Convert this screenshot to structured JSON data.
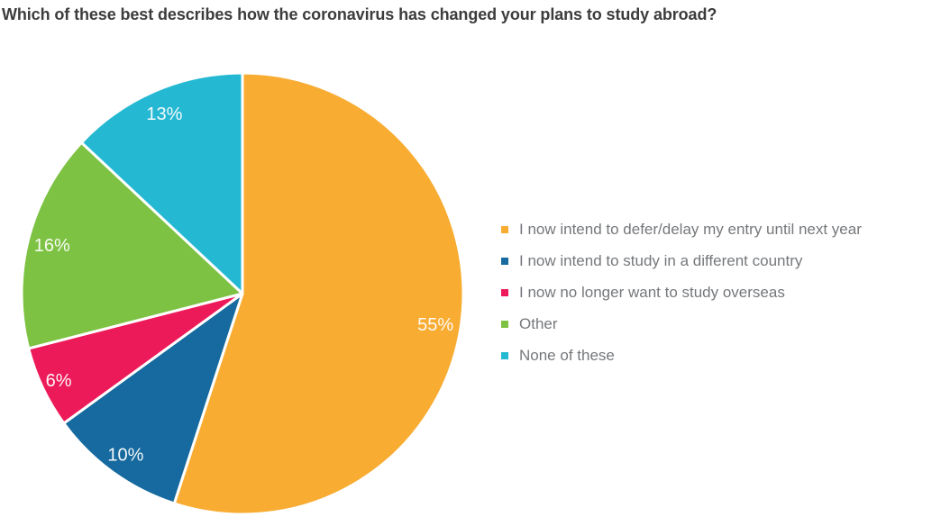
{
  "chart_data": {
    "type": "pie",
    "title": "Which of these best describes how the coronavirus has changed your plans to study abroad?",
    "slices": [
      {
        "label": "I now intend to defer/delay my entry until next year",
        "value": 55,
        "percent_label": "55%",
        "color": "#f8ac32"
      },
      {
        "label": "I now intend to study in a different country",
        "value": 10,
        "percent_label": "10%",
        "color": "#166a9f"
      },
      {
        "label": "I now no longer want to study overseas",
        "value": 6,
        "percent_label": "6%",
        "color": "#ed1a59"
      },
      {
        "label": "Other",
        "value": 16,
        "percent_label": "16%",
        "color": "#7dc243"
      },
      {
        "label": "None of these",
        "value": 13,
        "percent_label": "13%",
        "color": "#25b8d3"
      }
    ],
    "start_angle_deg": 0,
    "direction": "clockwise",
    "legend_position": "right",
    "slice_border_color": "#ffffff",
    "slice_border_width": 3,
    "label_radius_frac": [
      0.885,
      0.9,
      0.92,
      0.89,
      0.89
    ],
    "title_color": "#3c3c3c",
    "legend_text_color": "#75787b",
    "value_label_color": "#ffffff",
    "background_color": "#ffffff"
  }
}
